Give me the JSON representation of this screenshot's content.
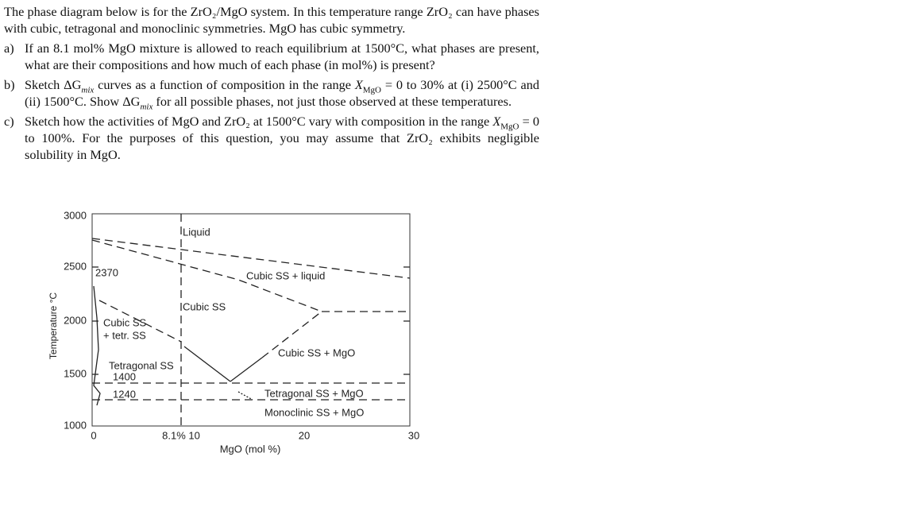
{
  "question": {
    "intro": "The phase diagram below is for the ZrO₂/MgO system.  In this temperature range ZrO₂ can have phases with cubic, tetragonal and monoclinic symmetries.  MgO has cubic symmetry.",
    "parts": [
      {
        "label": "a)",
        "segments": [
          "If an 8.1 mol% MgO mixture is allowed to reach equilibrium at 1500°C, what phases are present, what are their compositions and how much of each phase (in mol%) is present?"
        ]
      },
      {
        "label": "b)",
        "segments": [
          "Sketch ΔG",
          "mix",
          " curves as a function of composition in the range ",
          "X",
          "MgO",
          " = 0 to 30% at (i) 2500°C and (ii) 1500°C.  Show ΔG",
          "mix",
          " for all possible phases, not just those observed at these temperatures."
        ]
      },
      {
        "label": "c)",
        "segments": [
          "Sketch how the activities of MgO and ZrO₂ at 1500°C vary with composition in the range ",
          "X",
          "MgO",
          " = 0 to 100%.  For the purposes of this question, you may assume that ZrO₂ exhibits negligible solubility in MgO."
        ]
      }
    ]
  },
  "figure": {
    "y_label": "Temperature °C",
    "x_label": "MgO (mol %)",
    "y_ticks": [
      3000,
      2500,
      2000,
      1500,
      1000
    ],
    "x_ticks": [
      "0",
      "8.1% 10",
      "20",
      "30"
    ],
    "labels": [
      "Liquid",
      "2370",
      "Cubic SS + liquid",
      "Cubic SS",
      "Cubic SS",
      "+ tetr. SS",
      "Cubic SS + MgO",
      "Tetragonal SS",
      "1400",
      "1240",
      "Tetragonal SS + MgO",
      "Monoclinic SS + MgO"
    ]
  }
}
